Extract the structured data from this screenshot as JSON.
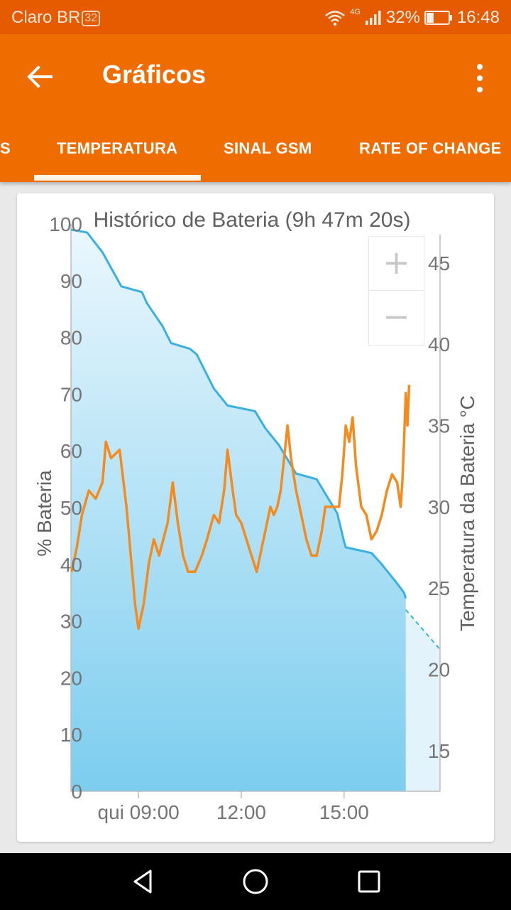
{
  "status_bar": {
    "carrier": "Claro BR",
    "badge": "32",
    "network": "4G",
    "battery": "32%",
    "time": "16:48"
  },
  "app_bar": {
    "title": "Gráficos",
    "back_icon": "arrow-back-icon",
    "menu_icon": "more-vert-icon"
  },
  "tabs": [
    {
      "label": "S",
      "active": false
    },
    {
      "label": "TEMPERATURA",
      "active": true
    },
    {
      "label": "SINAL GSM",
      "active": false
    },
    {
      "label": "RATE OF CHANGE",
      "active": false
    }
  ],
  "zoom": {
    "in_label": "+",
    "out_label": "−"
  },
  "chart_data": {
    "type": "line",
    "title": "Histórico de Bateria (9h 47m 20s)",
    "ylabel_left": "% Bateria",
    "ylabel_right": "Temperatura da Bateria °C",
    "x_ticks": [
      {
        "label": "qui 09:00",
        "hour": 9
      },
      {
        "label": "12:00",
        "hour": 12
      },
      {
        "label": "15:00",
        "hour": 15
      }
    ],
    "xlim_hours": [
      7.03,
      17.8
    ],
    "y_left": {
      "min": 0,
      "max": 100,
      "ticks": [
        0,
        10,
        20,
        30,
        40,
        50,
        60,
        70,
        80,
        90,
        100
      ]
    },
    "y_right": {
      "min": 12.5,
      "max": 47.4,
      "ticks": [
        15,
        20,
        25,
        30,
        35,
        40,
        45
      ]
    },
    "colors": {
      "battery": "#3ab0e2",
      "temperature": "#f58a1f",
      "fill_top": "#e9f7fd",
      "fill_bottom": "#7ccdef",
      "projection_fill": "#e3f3fb"
    },
    "series": [
      {
        "name": "% Bateria",
        "axis": "left",
        "points": [
          [
            7.03,
            99
          ],
          [
            7.5,
            98.5
          ],
          [
            7.95,
            95
          ],
          [
            8.5,
            89
          ],
          [
            9.1,
            88
          ],
          [
            9.25,
            86
          ],
          [
            9.7,
            82
          ],
          [
            9.95,
            79
          ],
          [
            10.5,
            78
          ],
          [
            10.7,
            77
          ],
          [
            11.2,
            71
          ],
          [
            11.6,
            68
          ],
          [
            12.4,
            67
          ],
          [
            12.7,
            64
          ],
          [
            13.1,
            61
          ],
          [
            13.4,
            58
          ],
          [
            13.6,
            56
          ],
          [
            14.2,
            55
          ],
          [
            14.4,
            53
          ],
          [
            14.6,
            51
          ],
          [
            14.8,
            49
          ],
          [
            15,
            44
          ],
          [
            15.05,
            43
          ],
          [
            15.8,
            42
          ],
          [
            16.1,
            40
          ],
          [
            16.5,
            37
          ],
          [
            16.75,
            35
          ],
          [
            16.8,
            34
          ]
        ]
      },
      {
        "name": "Projeção",
        "axis": "left",
        "points": [
          [
            16.8,
            32
          ],
          [
            17.8,
            25
          ]
        ]
      },
      {
        "name": "Temperatura",
        "axis": "right",
        "points": [
          [
            7.05,
            26
          ],
          [
            7.2,
            27.5
          ],
          [
            7.35,
            29.5
          ],
          [
            7.55,
            31
          ],
          [
            7.75,
            30.5
          ],
          [
            7.95,
            31.5
          ],
          [
            8.05,
            34
          ],
          [
            8.2,
            33
          ],
          [
            8.45,
            33.5
          ],
          [
            8.65,
            30
          ],
          [
            8.9,
            24
          ],
          [
            9.0,
            22.5
          ],
          [
            9.15,
            24
          ],
          [
            9.3,
            26.5
          ],
          [
            9.45,
            28
          ],
          [
            9.6,
            27
          ],
          [
            9.85,
            29
          ],
          [
            10.0,
            31.5
          ],
          [
            10.15,
            29
          ],
          [
            10.3,
            27
          ],
          [
            10.45,
            26
          ],
          [
            10.65,
            26
          ],
          [
            10.85,
            27
          ],
          [
            11.0,
            28
          ],
          [
            11.2,
            29.5
          ],
          [
            11.35,
            29
          ],
          [
            11.5,
            31
          ],
          [
            11.6,
            33.5
          ],
          [
            11.75,
            31
          ],
          [
            11.85,
            29.5
          ],
          [
            12.0,
            29
          ],
          [
            12.15,
            28
          ],
          [
            12.3,
            27
          ],
          [
            12.45,
            26
          ],
          [
            12.6,
            27.5
          ],
          [
            12.75,
            29
          ],
          [
            12.85,
            30
          ],
          [
            12.95,
            29.5
          ],
          [
            13.05,
            30
          ],
          [
            13.15,
            31
          ],
          [
            13.25,
            33
          ],
          [
            13.35,
            35
          ],
          [
            13.45,
            33
          ],
          [
            13.6,
            31
          ],
          [
            13.75,
            29.5
          ],
          [
            13.9,
            28
          ],
          [
            14.05,
            27
          ],
          [
            14.2,
            27
          ],
          [
            14.35,
            28.5
          ],
          [
            14.45,
            30
          ],
          [
            14.7,
            30
          ],
          [
            14.85,
            30
          ],
          [
            14.95,
            32
          ],
          [
            15.05,
            35
          ],
          [
            15.15,
            34
          ],
          [
            15.25,
            35.5
          ],
          [
            15.35,
            32.5
          ],
          [
            15.5,
            30
          ],
          [
            15.65,
            29.5
          ],
          [
            15.8,
            28
          ],
          [
            15.95,
            28.5
          ],
          [
            16.1,
            29.5
          ],
          [
            16.25,
            31
          ],
          [
            16.4,
            32
          ],
          [
            16.55,
            31.5
          ],
          [
            16.65,
            30
          ],
          [
            16.7,
            31.5
          ],
          [
            16.75,
            34
          ],
          [
            16.8,
            37
          ],
          [
            16.85,
            35
          ],
          [
            16.9,
            37.5
          ]
        ]
      }
    ]
  }
}
